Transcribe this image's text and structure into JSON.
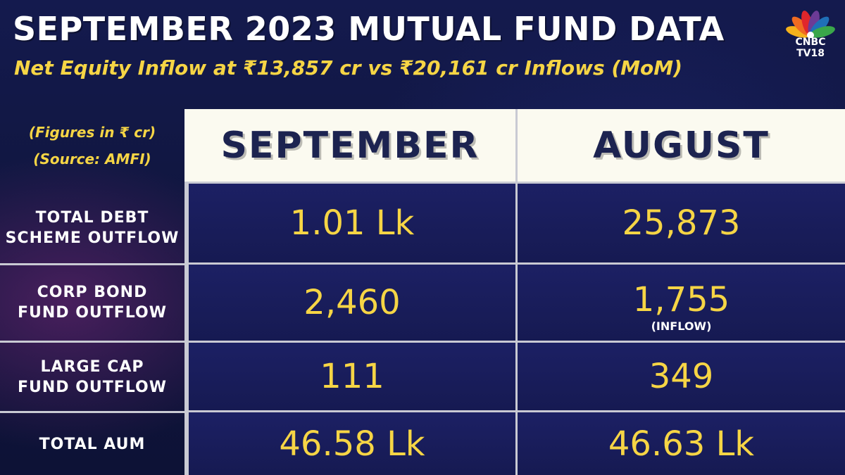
{
  "header": {
    "title": "SEPTEMBER 2023 MUTUAL FUND DATA",
    "subtitle": "Net Equity Inflow at ₹13,857 cr vs ₹20,161 cr Inflows (MoM)"
  },
  "logo": {
    "line1": "CNBC",
    "line2": "TV18",
    "peacock_colors": [
      "#f5b21b",
      "#ef6b21",
      "#e0262b",
      "#6c3b96",
      "#1f6fb7",
      "#3aa64a"
    ]
  },
  "notes": {
    "figures": "(Figures in ₹ cr)",
    "source": "(Source: AMFI)"
  },
  "table": {
    "columns": [
      "SEPTEMBER",
      "AUGUST"
    ],
    "rows": [
      {
        "label_line1": "TOTAL DEBT",
        "label_line2": "SCHEME OUTFLOW",
        "september": "1.01 Lk",
        "august": "25,873",
        "august_note": ""
      },
      {
        "label_line1": "CORP BOND",
        "label_line2": "FUND OUTFLOW",
        "september": "2,460",
        "august": "1,755",
        "august_note": "(INFLOW)"
      },
      {
        "label_line1": "LARGE CAP",
        "label_line2": "FUND OUTFLOW",
        "september": "111",
        "august": "349",
        "august_note": ""
      },
      {
        "label_line1": "TOTAL AUM",
        "label_line2": "",
        "september": "46.58 Lk",
        "august": "46.63 Lk",
        "august_note": ""
      }
    ]
  },
  "colors": {
    "background": "#141a4e",
    "accent_yellow": "#f6d545",
    "header_cell": "#fbfaf0",
    "header_text": "#1c2350"
  }
}
